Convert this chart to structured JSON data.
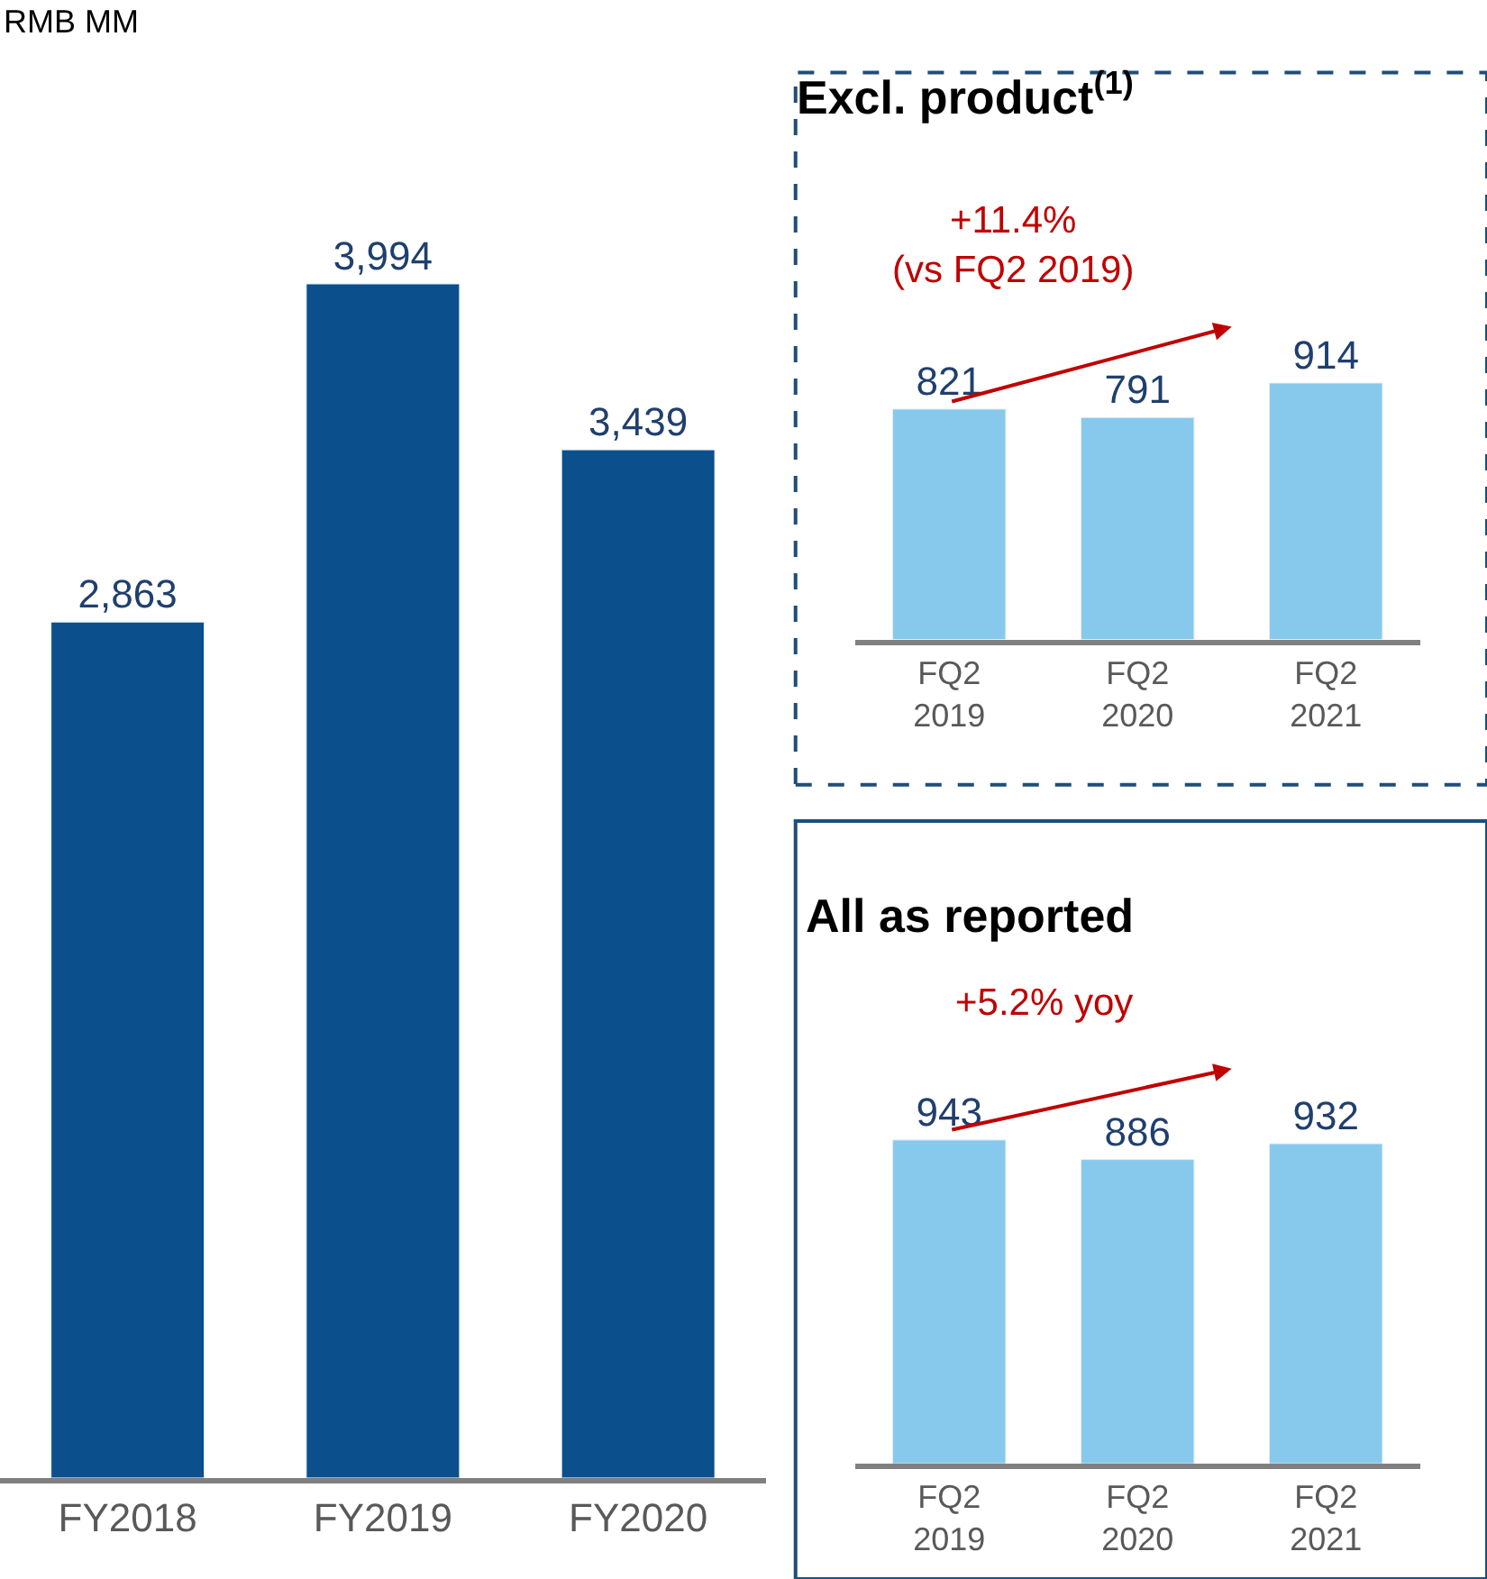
{
  "chart_data": [
    {
      "type": "bar",
      "ylabel": "RMB MM",
      "categories": [
        "FY2018",
        "FY2019",
        "FY2020"
      ],
      "values": [
        2863,
        3994,
        3439
      ],
      "value_labels": [
        "2,863",
        "3,994",
        "3,439"
      ],
      "color": "#0b4f8c",
      "tick_labels": "x"
    },
    {
      "type": "bar",
      "title": "Excl. product$^{(1)}$",
      "categories": [
        "FQ2\n2019",
        "FQ2\n2020",
        "FQ2\n2021"
      ],
      "values": [
        821,
        791,
        914
      ],
      "color": "#87c9ec",
      "data_labels": true,
      "tick_labels": "x",
      "annotations": [
        "+11.4%\n(vs FQ2 2019)"
      ]
    },
    {
      "type": "bar",
      "title": "All as reported",
      "categories": [
        "FQ2\n2019",
        "FQ2\n2020",
        "FQ2\n2021"
      ],
      "values": [
        943,
        886,
        932
      ],
      "color": "#87c9ec",
      "data_labels": true,
      "tick_labels": "x",
      "annotations": [
        "+5.2% yoy"
      ]
    }
  ]
}
